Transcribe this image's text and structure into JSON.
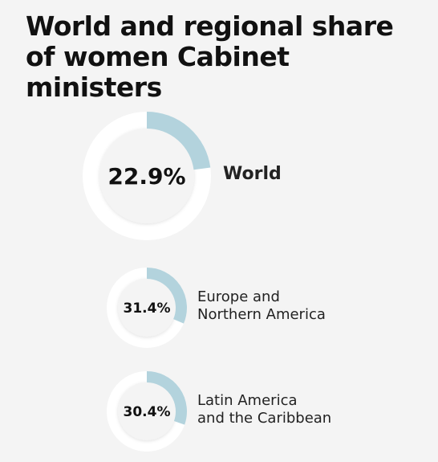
{
  "title": "World and regional share of women Cabinet ministers",
  "chart_data": [
    {
      "type": "pie",
      "categories": [
        "World"
      ],
      "values": [
        22.9
      ],
      "value_labels": [
        "22.9%"
      ],
      "color": "#b3d3dd"
    },
    {
      "type": "pie",
      "categories": [
        "Europe and\nNorthern America"
      ],
      "values": [
        31.4
      ],
      "value_labels": [
        "31.4%"
      ],
      "color": "#b3d3dd"
    },
    {
      "type": "pie",
      "categories": [
        "Latin America\nand the Caribbean"
      ],
      "values": [
        30.4
      ],
      "value_labels": [
        "30.4%"
      ],
      "color": "#b3d3dd"
    }
  ]
}
